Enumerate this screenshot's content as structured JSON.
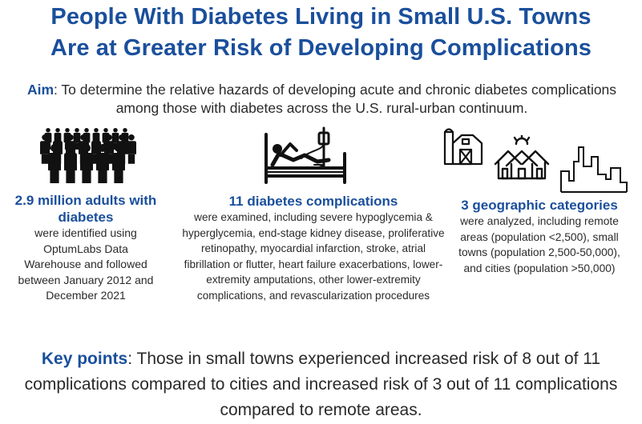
{
  "title": {
    "line1": "People With Diabetes Living in Small U.S. Towns",
    "line2": "Are at Greater Risk of Developing Complications"
  },
  "aim": {
    "label": "Aim",
    "text": ": To determine the relative hazards of developing acute and chronic diabetes complications among those with diabetes across the U.S. rural-urban continuum."
  },
  "columns": {
    "adults": {
      "icon": "crowd-icon",
      "heading": "2.9 million adults with diabetes",
      "body": "were identified using OptumLabs Data Warehouse and followed between January 2012 and December 2021"
    },
    "complications": {
      "icon": "hospital-bed-icon",
      "heading": "11 diabetes complications",
      "body": "were examined, including severe hypoglycemia & hyperglycemia, end-stage kidney disease, proliferative retinopathy, myocardial infarction, stroke, atrial fibrillation or flutter, heart failure exacerbations, lower-extremity amputations, other lower-extremity complications, and revascularization procedures"
    },
    "geographic": {
      "icons": [
        "barn-icon",
        "houses-icon",
        "city-skyline-icon"
      ],
      "heading": "3 geographic categories",
      "body": "were analyzed, including remote areas (population <2,500), small towns (population 2,500-50,000), and cities (population >50,000)"
    }
  },
  "key_points": {
    "label": "Key points",
    "text": ": Those in small towns experienced increased risk of 8 out of 11 complications compared to cities and increased risk of 3 out of 11 complications compared to remote areas."
  },
  "colors": {
    "accent": "#1a4f9c",
    "text": "#2a2a2a",
    "icon": "#111111"
  }
}
